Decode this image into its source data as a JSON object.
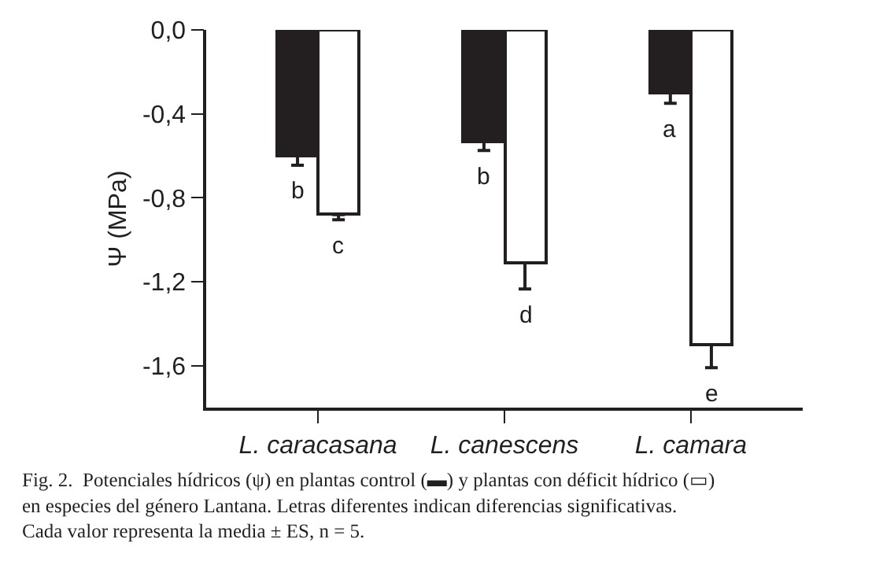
{
  "chart_data": {
    "type": "bar",
    "ylabel": "Ψ (MPa)",
    "categories": [
      "L. caracasana",
      "L. canescens",
      "L. camara"
    ],
    "series": [
      {
        "color": "#231f20",
        "values": [
          -0.6,
          -0.53,
          -0.3
        ],
        "errors": [
          [
            -0.645,
            -0.6
          ],
          [
            -0.575,
            -0.53
          ],
          [
            -0.35,
            -0.3
          ]
        ]
      },
      {
        "color": "#ffffff",
        "values": [
          -0.88,
          -1.11,
          -1.5
        ],
        "errors": [
          [
            -0.905,
            -0.88
          ],
          [
            -1.235,
            -1.11
          ],
          [
            -1.61,
            -1.5
          ]
        ]
      }
    ],
    "ylim": [
      -1.8,
      0
    ],
    "yticks": [
      {
        "value": 0,
        "label": "0,0"
      },
      {
        "value": -0.4,
        "label": "-0,4"
      },
      {
        "value": -0.8,
        "label": "-0,8"
      },
      {
        "value": -1.2,
        "label": "-1,2"
      },
      {
        "value": -1.6,
        "label": "-1,6"
      }
    ],
    "annotations": [
      {
        "text": "b",
        "x": "L. caracasana",
        "y": -0.6
      },
      {
        "text": "c",
        "x": "L. caracasana",
        "y": -0.88
      },
      {
        "text": "b",
        "x": "L. canescens",
        "y": -0.53
      },
      {
        "text": "d",
        "x": "L. canescens",
        "y": -1.11
      },
      {
        "text": "a",
        "x": "L. camara",
        "y": -0.3
      },
      {
        "text": "e",
        "x": "L. camara",
        "y": -1.5
      },
      "Fig. 2.  Potenciales hídricos (ψ) en plantas control (▬) y plantas con déficit hídrico (▭)\nen especies del género Lantana. Letras diferentes indican diferencias significativas.\nCada valor representa la media ± ES, n = 5."
    ]
  }
}
